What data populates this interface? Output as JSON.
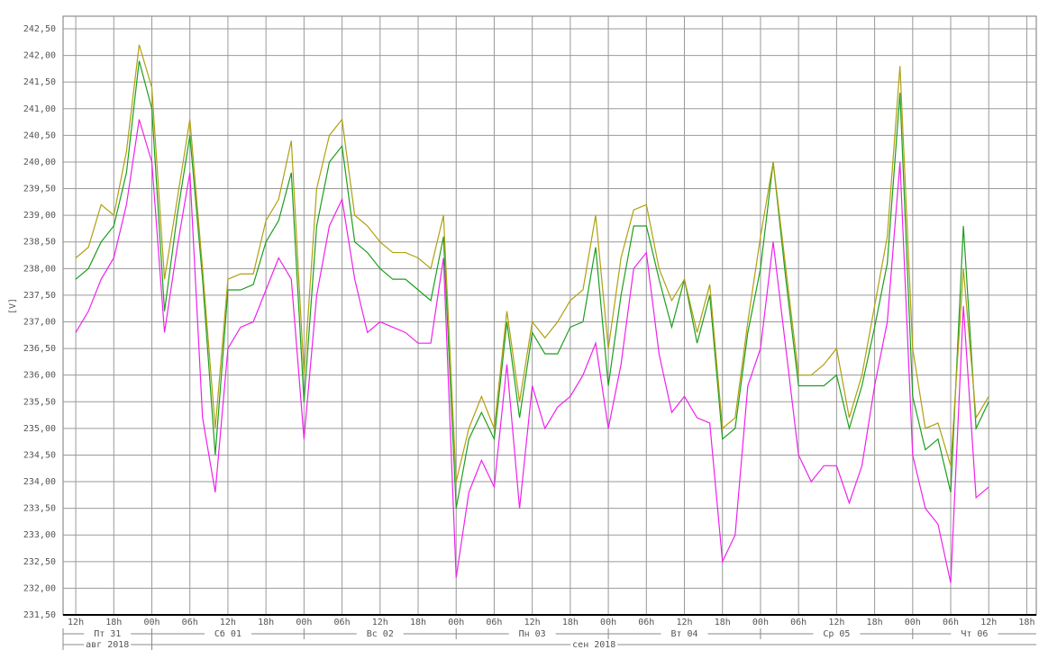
{
  "chart_data": {
    "type": "line",
    "y_label": "[V]",
    "x": [
      0,
      2,
      4,
      6,
      8,
      10,
      12,
      14,
      16,
      18,
      20,
      22,
      24,
      26,
      28,
      30,
      32,
      34,
      36,
      38,
      40,
      42,
      44,
      46,
      48,
      50,
      52,
      54,
      56,
      58,
      60,
      62,
      64,
      66,
      68,
      70,
      72,
      74,
      76,
      78,
      80,
      82,
      84,
      86,
      88,
      90,
      92,
      94,
      96,
      98,
      100,
      102,
      104,
      106,
      108,
      110,
      112,
      114,
      116,
      118,
      120,
      122,
      124,
      126,
      128,
      130,
      132,
      134,
      136,
      138,
      140,
      142,
      144
    ],
    "series": [
      {
        "color": "#b0a010",
        "values": [
          238.2,
          238.4,
          239.2,
          239.0,
          240.2,
          242.2,
          241.4,
          237.8,
          239.3,
          240.8,
          238.0,
          235.0,
          237.8,
          237.9,
          237.9,
          238.9,
          239.3,
          240.4,
          236.0,
          239.5,
          240.5,
          240.8,
          239.0,
          238.8,
          238.5,
          238.3,
          238.3,
          238.2,
          238.0,
          239.0,
          234.0,
          235.0,
          235.6,
          235.0,
          237.2,
          235.5,
          237.0,
          236.7,
          237.0,
          237.4,
          237.6,
          239.0,
          236.5,
          238.2,
          239.1,
          239.2,
          238.0,
          237.4,
          237.8,
          236.8,
          237.7,
          235.0,
          235.2,
          237.0,
          238.6,
          240.0,
          238.0,
          236.0,
          236.0,
          236.2,
          236.5,
          235.2,
          236.0,
          237.3,
          238.6,
          241.8,
          236.5,
          235.0,
          235.1,
          234.3,
          238.0,
          235.2,
          235.6
        ]
      },
      {
        "color": "#1e9e1e",
        "values": [
          237.8,
          238.0,
          238.5,
          238.8,
          239.8,
          241.9,
          241.0,
          237.2,
          239.0,
          240.5,
          237.8,
          234.5,
          237.6,
          237.6,
          237.7,
          238.5,
          238.9,
          239.8,
          235.5,
          238.8,
          240.0,
          240.3,
          238.5,
          238.3,
          238.0,
          237.8,
          237.8,
          237.6,
          237.4,
          238.6,
          233.5,
          234.8,
          235.3,
          234.8,
          237.0,
          235.2,
          236.8,
          236.4,
          236.4,
          236.9,
          237.0,
          238.4,
          235.8,
          237.5,
          238.8,
          238.8,
          237.8,
          236.9,
          237.8,
          236.6,
          237.5,
          234.8,
          235.0,
          236.8,
          238.0,
          240.0,
          237.8,
          235.8,
          235.8,
          235.8,
          236.0,
          235.0,
          235.8,
          236.9,
          238.1,
          241.3,
          235.6,
          234.6,
          234.8,
          233.8,
          238.8,
          235.0,
          235.5
        ]
      },
      {
        "color": "#ee22ee",
        "values": [
          236.8,
          237.2,
          237.8,
          238.2,
          239.2,
          240.8,
          240.0,
          236.8,
          238.4,
          239.8,
          235.2,
          233.8,
          236.5,
          236.9,
          237.0,
          237.6,
          238.2,
          237.8,
          234.8,
          237.5,
          238.8,
          239.3,
          237.8,
          236.8,
          237.0,
          236.9,
          236.8,
          236.6,
          236.6,
          238.2,
          232.2,
          233.8,
          234.4,
          233.9,
          236.2,
          233.5,
          235.8,
          235.0,
          235.4,
          235.6,
          236.0,
          236.6,
          235.0,
          236.2,
          238.0,
          238.3,
          236.4,
          235.3,
          235.6,
          235.2,
          235.1,
          232.5,
          233.0,
          235.8,
          236.5,
          238.5,
          236.5,
          234.5,
          234.0,
          234.3,
          234.3,
          233.6,
          234.3,
          235.8,
          237.0,
          240.0,
          234.5,
          233.5,
          233.2,
          232.1,
          237.3,
          233.7,
          233.9
        ]
      }
    ],
    "xlim": [
      -2,
      151.5
    ],
    "xticks": [
      {
        "value": 0,
        "label": "12h"
      },
      {
        "value": 6,
        "label": "18h"
      },
      {
        "value": 12,
        "label": "00h"
      },
      {
        "value": 18,
        "label": "06h"
      },
      {
        "value": 24,
        "label": "12h"
      },
      {
        "value": 30,
        "label": "18h"
      },
      {
        "value": 36,
        "label": "00h"
      },
      {
        "value": 42,
        "label": "06h"
      },
      {
        "value": 48,
        "label": "12h"
      },
      {
        "value": 54,
        "label": "18h"
      },
      {
        "value": 60,
        "label": "00h"
      },
      {
        "value": 66,
        "label": "06h"
      },
      {
        "value": 72,
        "label": "12h"
      },
      {
        "value": 78,
        "label": "18h"
      },
      {
        "value": 84,
        "label": "00h"
      },
      {
        "value": 90,
        "label": "06h"
      },
      {
        "value": 96,
        "label": "12h"
      },
      {
        "value": 102,
        "label": "18h"
      },
      {
        "value": 108,
        "label": "00h"
      },
      {
        "value": 114,
        "label": "06h"
      },
      {
        "value": 120,
        "label": "12h"
      },
      {
        "value": 126,
        "label": "18h"
      },
      {
        "value": 132,
        "label": "00h"
      },
      {
        "value": 138,
        "label": "06h"
      },
      {
        "value": 144,
        "label": "12h"
      },
      {
        "value": 150,
        "label": "18h"
      }
    ],
    "ylim": [
      231.5,
      242.5
    ],
    "yticks": [
      {
        "value": 231.5,
        "label": "231,50"
      },
      {
        "value": 232,
        "label": "232,00"
      },
      {
        "value": 232.5,
        "label": "232,50"
      },
      {
        "value": 233,
        "label": "233,00"
      },
      {
        "value": 233.5,
        "label": "233,50"
      },
      {
        "value": 234,
        "label": "234,00"
      },
      {
        "value": 234.5,
        "label": "234,50"
      },
      {
        "value": 235,
        "label": "235,00"
      },
      {
        "value": 235.5,
        "label": "235,50"
      },
      {
        "value": 236,
        "label": "236,00"
      },
      {
        "value": 236.5,
        "label": "236,50"
      },
      {
        "value": 237,
        "label": "237,00"
      },
      {
        "value": 237.5,
        "label": "237,50"
      },
      {
        "value": 238,
        "label": "238,00"
      },
      {
        "value": 238.5,
        "label": "238,50"
      },
      {
        "value": 239,
        "label": "239,00"
      },
      {
        "value": 239.5,
        "label": "239,50"
      },
      {
        "value": 240,
        "label": "240,00"
      },
      {
        "value": 240.5,
        "label": "240,50"
      },
      {
        "value": 241,
        "label": "241,00"
      },
      {
        "value": 241.5,
        "label": "241,50"
      },
      {
        "value": 242,
        "label": "242,00"
      },
      {
        "value": 242.5,
        "label": "242,50"
      }
    ],
    "grid": true,
    "day_labels": [
      "Пт 31",
      "Сб 01",
      "Вс 02",
      "Пн 03",
      "Вт 04",
      "Ср 05",
      "Чт 06"
    ],
    "day_bounds": [
      12,
      36,
      60,
      84,
      108,
      132
    ],
    "month_labels": [
      "авг 2018",
      "сен 2018"
    ],
    "month_bounds": [
      12
    ]
  }
}
